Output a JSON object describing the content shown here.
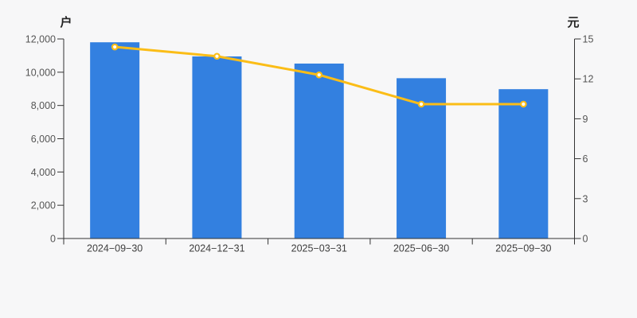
{
  "chart_data": {
    "type": "bar",
    "title": "",
    "categories": [
      "2024−09−30",
      "2024−12−31",
      "2025−03−31",
      "2025−06−30",
      "2025−09−30"
    ],
    "series": [
      {
        "name": "left-axis-bars",
        "type": "bar",
        "axis": "left",
        "color": "#3380e0",
        "values": [
          11800,
          10950,
          10520,
          9640,
          8980
        ]
      },
      {
        "name": "right-axis-line",
        "type": "line",
        "axis": "right",
        "color": "#fbbd17",
        "marker_fill": "#ffffff",
        "values": [
          14.4,
          13.7,
          12.3,
          10.1,
          10.1
        ]
      }
    ],
    "left_axis": {
      "unit": "户",
      "min": 0,
      "max": 12000,
      "tick_step": 2000,
      "ticks": [
        "0",
        "2,000",
        "4,000",
        "6,000",
        "8,000",
        "10,000",
        "12,000"
      ]
    },
    "right_axis": {
      "unit": "元",
      "min": 0,
      "max": 15,
      "tick_step": 3,
      "ticks": [
        "0",
        "3",
        "6",
        "9",
        "12",
        "15"
      ]
    },
    "grid": false,
    "legend": false,
    "colors": {
      "background": "#f7f7f8",
      "bar": "#3380e0",
      "line": "#fbbd17",
      "marker_fill": "#ffffff",
      "axis": "#333333",
      "tick_text": "#555555",
      "date_text": "#3d3d3d"
    }
  }
}
